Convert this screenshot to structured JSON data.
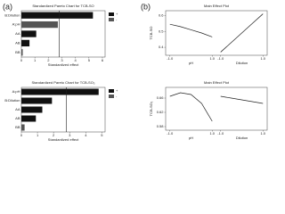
{
  "labels": [
    "(a)",
    "(b)"
  ],
  "chart_data": [
    {
      "type": "pareto",
      "title": "Standardized Pareto Chart for TCB-SO",
      "xlabel": "Standardized effect",
      "categories": [
        "B:Dilution",
        "A:pH",
        "AA",
        "AB",
        "BB"
      ],
      "values": [
        5.3,
        2.7,
        1.1,
        0.6,
        0.1
      ],
      "colors": [
        "#111111",
        "#555555",
        "#111111",
        "#111111",
        "#555555"
      ],
      "legend": [
        {
          "name": "+",
          "color": "#111111"
        },
        {
          "name": "-",
          "color": "#555555"
        }
      ],
      "refline": 2.8,
      "xlim": [
        0,
        6.2
      ],
      "xticks": [
        0,
        1,
        2,
        3,
        4,
        5,
        6
      ]
    },
    {
      "type": "pareto",
      "title": "Standardized Pareto Chart for TCB-SO₃",
      "xlabel": "Standardized effect",
      "categories": [
        "A:pH",
        "B:Dilution",
        "AA",
        "AB",
        "BB"
      ],
      "values": [
        4.8,
        1.9,
        1.3,
        0.9,
        0.2
      ],
      "colors": [
        "#111111",
        "#111111",
        "#111111",
        "#111111",
        "#555555"
      ],
      "legend": [
        {
          "name": "+",
          "color": "#111111"
        },
        {
          "name": "-",
          "color": "#555555"
        }
      ],
      "refline": 2.8,
      "xlim": [
        0,
        5.2
      ],
      "xticks": [
        0,
        1,
        2,
        3,
        4,
        5
      ]
    },
    {
      "type": "line",
      "title": "Main Effect Plot",
      "ylabel": "TCB-SO",
      "xlim": [
        -1.2,
        1.2
      ],
      "xticks": [
        {
          "value": -1,
          "label": "-1.0"
        },
        {
          "value": 1,
          "label": "1.0"
        }
      ],
      "ylim": [
        0.35,
        0.63
      ],
      "yticks": [
        0.4,
        0.5,
        0.6
      ],
      "series": [
        {
          "name": "pH",
          "color": "#222222",
          "x": [
            -1,
            -0.5,
            0,
            0.5,
            1
          ],
          "values": [
            0.545,
            0.53,
            0.51,
            0.49,
            0.465
          ]
        },
        {
          "name": "Dilution",
          "color": "#222222",
          "x": [
            -1,
            -0.5,
            0,
            0.5,
            1
          ],
          "values": [
            0.37,
            0.43,
            0.49,
            0.55,
            0.61
          ]
        }
      ]
    },
    {
      "type": "line",
      "title": "Main Effect Plot",
      "ylabel": "TCB-SO₃",
      "xlim": [
        -1.2,
        1.2
      ],
      "xticks": [
        {
          "value": -1,
          "label": "-1.0"
        },
        {
          "value": 1,
          "label": "1.0"
        }
      ],
      "ylim": [
        0.57,
        0.69
      ],
      "yticks": [
        0.58,
        0.62,
        0.66
      ],
      "series": [
        {
          "name": "pH",
          "color": "#222222",
          "x": [
            -1,
            -0.5,
            0,
            0.5,
            1
          ],
          "values": [
            0.665,
            0.675,
            0.67,
            0.645,
            0.595
          ]
        },
        {
          "name": "Dilution",
          "color": "#222222",
          "x": [
            -1,
            -0.5,
            0,
            0.5,
            1
          ],
          "values": [
            0.665,
            0.66,
            0.655,
            0.65,
            0.645
          ]
        }
      ]
    }
  ]
}
